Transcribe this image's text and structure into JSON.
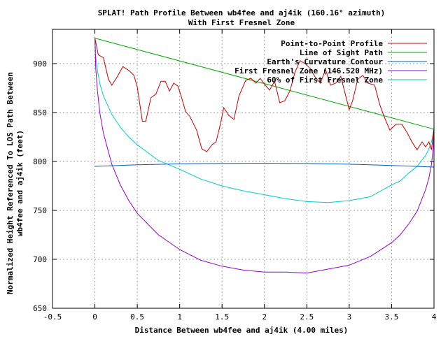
{
  "chart_data": {
    "type": "line",
    "title": "SPLAT! Path Profile Between wb4fee and aj4ik (160.16° azimuth)",
    "subtitle": "With First Fresnel Zone",
    "xlabel": "Distance Between wb4fee and aj4ik (4.00 miles)",
    "ylabel_line1": "Normalized Height Referenced To LOS Path Between",
    "ylabel_line2": "wb4fee and aj4ik (feet)",
    "xlim": [
      -0.5,
      4
    ],
    "ylim": [
      650,
      935
    ],
    "xticks": [
      -0.5,
      0,
      0.5,
      1,
      1.5,
      2,
      2.5,
      3,
      3.5,
      4
    ],
    "xtick_labels": [
      "-0.5",
      "0",
      "0.5",
      "1",
      "1.5",
      "2",
      "2.5",
      "3",
      "3.5",
      "4"
    ],
    "yticks": [
      650,
      700,
      750,
      800,
      850,
      900
    ],
    "ytick_labels": [
      "650",
      "700",
      "750",
      "800",
      "850",
      "900"
    ],
    "grid": true,
    "legend_position": "top-right",
    "series": [
      {
        "name": "Point-to-Point Profile",
        "color": "#cc0000",
        "x": [
          0,
          0.04,
          0.1,
          0.16,
          0.2,
          0.26,
          0.33,
          0.4,
          0.46,
          0.5,
          0.56,
          0.6,
          0.66,
          0.72,
          0.78,
          0.83,
          0.88,
          0.93,
          0.98,
          1.02,
          1.07,
          1.12,
          1.2,
          1.26,
          1.32,
          1.38,
          1.43,
          1.48,
          1.52,
          1.58,
          1.64,
          1.7,
          1.78,
          1.84,
          1.9,
          1.95,
          2.0,
          2.06,
          2.12,
          2.18,
          2.24,
          2.3,
          2.36,
          2.42,
          2.48,
          2.54,
          2.6,
          2.66,
          2.72,
          2.78,
          2.84,
          2.9,
          2.95,
          3.0,
          3.04,
          3.1,
          3.16,
          3.22,
          3.3,
          3.36,
          3.42,
          3.48,
          3.55,
          3.62,
          3.68,
          3.74,
          3.8,
          3.86,
          3.9,
          3.94,
          3.97,
          4.0
        ],
        "y": [
          926,
          909,
          906,
          884,
          878,
          886,
          897,
          893,
          888,
          876,
          841,
          841,
          865,
          869,
          882,
          882,
          872,
          880,
          877,
          866,
          851,
          846,
          832,
          813,
          810,
          817,
          820,
          838,
          855,
          847,
          843,
          867,
          883,
          885,
          880,
          885,
          879,
          873,
          882,
          860,
          862,
          872,
          891,
          903,
          900,
          895,
          886,
          880,
          894,
          878,
          880,
          887,
          870,
          853,
          862,
          884,
          888,
          880,
          878,
          858,
          844,
          832,
          838,
          838,
          830,
          820,
          812,
          820,
          815,
          820,
          812,
          834
        ]
      },
      {
        "name": "Line of Sight Path",
        "color": "#00aa00",
        "x": [
          0,
          4.0
        ],
        "y": [
          926,
          833
        ]
      },
      {
        "name": "Earth's Curvature Contour",
        "color": "#0060c0",
        "x": [
          0,
          0.5,
          1,
          1.5,
          2,
          2.5,
          3,
          3.5,
          4.0
        ],
        "y": [
          795,
          796.6,
          797.6,
          798.1,
          798.2,
          797.9,
          797.2,
          795.9,
          794.3
        ]
      },
      {
        "name": "First Fresnel Zone (146.520 MHz)",
        "color": "#9900cc",
        "x": [
          0,
          0.01,
          0.03,
          0.06,
          0.1,
          0.2,
          0.3,
          0.4,
          0.5,
          0.75,
          1,
          1.25,
          1.5,
          1.75,
          2,
          2.25,
          2.5,
          2.75,
          3,
          3.25,
          3.5,
          3.6,
          3.7,
          3.8,
          3.9,
          3.94,
          3.97,
          3.99,
          4.0
        ],
        "y": [
          926,
          895,
          872,
          849,
          829,
          797,
          776,
          760,
          747,
          725,
          710,
          699,
          693,
          689,
          687,
          687,
          686,
          690,
          694,
          703,
          717,
          725,
          736,
          749,
          771,
          783,
          797,
          813,
          833
        ]
      },
      {
        "name": "60% of First Fresnel Zone",
        "color": "#00cccc",
        "x": [
          0,
          0.01,
          0.03,
          0.06,
          0.1,
          0.2,
          0.3,
          0.4,
          0.5,
          0.75,
          1,
          1.25,
          1.5,
          1.75,
          2,
          2.25,
          2.5,
          2.75,
          3,
          3.25,
          3.5,
          3.6,
          3.7,
          3.8,
          3.9,
          3.94,
          3.97,
          3.99,
          4.0
        ],
        "y": [
          926,
          907,
          893,
          879,
          867,
          848,
          835,
          825,
          817,
          801,
          792,
          782,
          775,
          770,
          766,
          762,
          759,
          758,
          760,
          764,
          776,
          780,
          788,
          795,
          806,
          813,
          820,
          828,
          833
        ]
      }
    ]
  }
}
